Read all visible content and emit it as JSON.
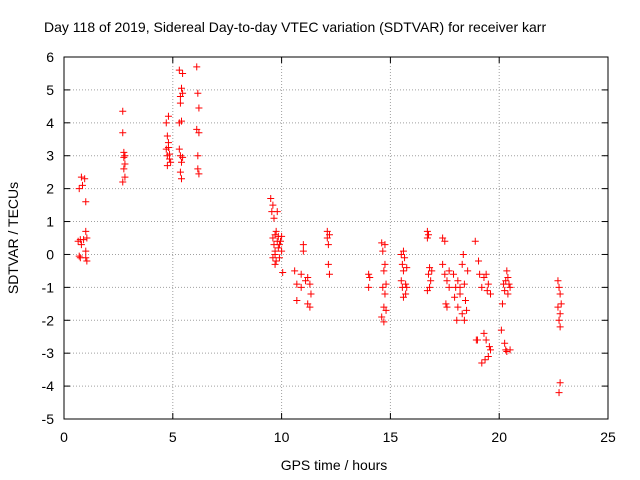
{
  "chart_data": {
    "type": "scatter",
    "title": "Day 118 of 2019, Sidereal Day-to-day VTEC variation (SDTVAR) for receiver karr",
    "xlabel": "GPS time / hours",
    "ylabel": "SDTVAR / TECUs",
    "xlim": [
      0,
      25
    ],
    "ylim": [
      -5,
      6
    ],
    "xticks": [
      "0",
      "5",
      "10",
      "15",
      "20",
      "25"
    ],
    "yticks": [
      "-5",
      "-4",
      "-3",
      "-2",
      "-1",
      "0",
      "1",
      "2",
      "3",
      "4",
      "5",
      "6"
    ],
    "grid": true,
    "marker": "+",
    "color": "#ff0000",
    "series": [
      {
        "name": "SDTVAR",
        "x": [
          0.65,
          0.7,
          0.7,
          0.75,
          0.75,
          0.8,
          0.8,
          0.85,
          0.9,
          0.95,
          1.0,
          1.0,
          1.0,
          1.0,
          1.05,
          1.05,
          2.7,
          2.7,
          2.7,
          2.75,
          2.75,
          2.75,
          2.8,
          2.8,
          2.8,
          4.7,
          4.7,
          4.75,
          4.75,
          4.75,
          4.8,
          4.8,
          4.8,
          4.85,
          4.85,
          4.9,
          5.3,
          5.3,
          5.3,
          5.35,
          5.35,
          5.35,
          5.35,
          5.4,
          5.4,
          5.4,
          5.4,
          5.45,
          5.45,
          5.45,
          6.1,
          6.1,
          6.15,
          6.15,
          6.15,
          6.2,
          6.2,
          6.2,
          9.5,
          9.55,
          9.6,
          9.6,
          9.65,
          9.65,
          9.7,
          9.7,
          9.7,
          9.75,
          9.75,
          9.8,
          9.8,
          9.85,
          9.85,
          9.9,
          9.9,
          9.95,
          10.0,
          10.0,
          10.05,
          9.6,
          9.7,
          10.6,
          10.7,
          10.7,
          10.9,
          10.9,
          11.0,
          11.0,
          11.1,
          11.2,
          11.2,
          11.3,
          11.3,
          11.35,
          12.1,
          12.1,
          12.15,
          12.15,
          12.2,
          12.2,
          14.0,
          14.0,
          14.05,
          14.6,
          14.6,
          14.65,
          14.65,
          14.7,
          14.7,
          14.75,
          14.75,
          14.8,
          14.8,
          14.7,
          14.75,
          15.5,
          15.5,
          15.55,
          15.55,
          15.6,
          15.6,
          15.65,
          15.7,
          15.7,
          15.75,
          15.75,
          15.6,
          16.7,
          16.7,
          16.75,
          16.75,
          16.8,
          16.8,
          16.85,
          16.9,
          16.7,
          17.4,
          17.4,
          17.5,
          17.5,
          17.55,
          17.6,
          17.6,
          17.7,
          17.7,
          17.9,
          17.95,
          18.0,
          18.05,
          18.1,
          18.1,
          18.2,
          18.2,
          18.3,
          18.3,
          18.35,
          18.4,
          18.4,
          18.45,
          18.5,
          18.55,
          18.9,
          18.95,
          19.0,
          19.05,
          19.1,
          19.2,
          19.2,
          19.3,
          19.3,
          19.35,
          19.4,
          19.45,
          19.5,
          19.55,
          19.6,
          19.6,
          19.4,
          19.5,
          20.1,
          20.15,
          20.2,
          20.25,
          20.25,
          20.3,
          20.3,
          20.35,
          20.4,
          20.4,
          20.45,
          20.5,
          20.5,
          20.35,
          22.7,
          22.7,
          22.75,
          22.75,
          22.8,
          22.8,
          22.8,
          22.85,
          22.75,
          22.8
        ],
        "y": [
          0.4,
          -0.05,
          2.0,
          0.45,
          -0.1,
          2.35,
          0.3,
          2.1,
          0.45,
          2.3,
          0.7,
          0.1,
          1.6,
          -0.1,
          0.5,
          -0.2,
          4.35,
          3.7,
          2.2,
          3.1,
          2.95,
          2.6,
          3.0,
          2.75,
          2.35,
          4.0,
          3.2,
          3.6,
          3.0,
          2.7,
          3.4,
          3.25,
          4.2,
          2.9,
          3.05,
          2.8,
          5.6,
          4.0,
          3.2,
          4.8,
          4.6,
          3.0,
          2.5,
          5.05,
          2.8,
          2.3,
          4.05,
          4.9,
          2.95,
          5.5,
          5.7,
          3.8,
          4.9,
          3.0,
          2.6,
          4.45,
          3.7,
          2.45,
          1.7,
          1.3,
          1.5,
          0.5,
          0.3,
          1.1,
          0.6,
          0.1,
          -0.3,
          0.7,
          -0.2,
          0.4,
          1.3,
          0.2,
          0.55,
          0.3,
          -0.1,
          0.4,
          0.55,
          0.1,
          -0.55,
          -0.1,
          0.0,
          -0.5,
          -1.4,
          -0.9,
          -0.6,
          -1.0,
          0.3,
          0.1,
          -0.8,
          -1.5,
          -0.7,
          -0.9,
          -1.6,
          -1.2,
          0.7,
          0.5,
          -0.3,
          0.3,
          -0.6,
          0.6,
          -0.6,
          -1.0,
          -0.7,
          0.35,
          -1.9,
          0.1,
          -1.0,
          -0.5,
          -1.6,
          0.3,
          -1.2,
          -0.9,
          -1.7,
          -2.05,
          -0.3,
          0.0,
          -0.8,
          -0.3,
          -1.0,
          -0.5,
          -1.3,
          -0.1,
          -0.9,
          -1.2,
          -0.4,
          -1.0,
          0.1,
          0.7,
          0.5,
          0.6,
          -0.6,
          -1.0,
          -0.4,
          -0.8,
          -0.5,
          -1.1,
          0.5,
          -0.3,
          0.4,
          -0.6,
          -1.5,
          -0.8,
          -1.6,
          -0.5,
          -1.0,
          -0.6,
          -1.3,
          -1.0,
          -2.0,
          -0.8,
          -1.6,
          -1.2,
          -1.0,
          -0.3,
          -1.8,
          0.0,
          -0.9,
          -2.0,
          -1.4,
          -1.7,
          -0.5,
          0.4,
          -2.6,
          -2.6,
          -0.2,
          -0.6,
          -3.3,
          -1.0,
          -2.4,
          -0.7,
          -3.2,
          -2.6,
          -1.1,
          -3.1,
          -2.8,
          -1.2,
          -2.9,
          -0.6,
          -0.9,
          -2.3,
          -1.5,
          -0.9,
          -2.7,
          -1.1,
          -0.8,
          -2.9,
          -2.95,
          -1.2,
          -0.7,
          -0.9,
          -1.0,
          -2.9,
          -0.5,
          -0.8,
          -1.6,
          -1.0,
          -2.0,
          -1.2,
          -1.8,
          -2.2,
          -1.5,
          -4.2,
          -3.9
        ]
      }
    ]
  }
}
